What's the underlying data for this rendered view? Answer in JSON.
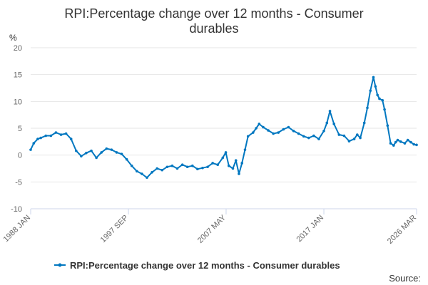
{
  "chart_data": {
    "type": "line",
    "title_lines": [
      "RPI:Percentage change over 12 months - Consumer",
      "durables"
    ],
    "ylabel": "%",
    "ylim": [
      -10,
      20
    ],
    "yticks": [
      "20",
      "15",
      "10",
      "5",
      "0",
      "-5",
      "-10"
    ],
    "xlim": [
      1988.0,
      2026.17
    ],
    "xticks": [
      {
        "label": "1988 JAN",
        "x": 1988.0
      },
      {
        "label": "1997 SEP",
        "x": 1997.67
      },
      {
        "label": "2007 MAY",
        "x": 2007.33
      },
      {
        "label": "2017 JAN",
        "x": 2017.0
      },
      {
        "label": "2026 MAR",
        "x": 2026.17
      }
    ],
    "grid": true,
    "legend": {
      "position": "bottom",
      "label": "RPI:Percentage change over 12 months - Consumer durables"
    },
    "series": [
      {
        "name": "RPI:Percentage change over 12 months - Consumer durables",
        "color": "#0077c0",
        "x": [
          1988.0,
          1988.3,
          1988.7,
          1989.0,
          1989.5,
          1990.0,
          1990.5,
          1991.0,
          1991.5,
          1992.0,
          1992.5,
          1993.0,
          1993.5,
          1994.0,
          1994.5,
          1995.0,
          1995.5,
          1996.0,
          1996.5,
          1997.0,
          1997.5,
          1998.0,
          1998.5,
          1999.0,
          1999.5,
          2000.0,
          2000.5,
          2001.0,
          2001.5,
          2002.0,
          2002.5,
          2003.0,
          2003.5,
          2004.0,
          2004.5,
          2005.0,
          2005.5,
          2006.0,
          2006.5,
          2007.0,
          2007.3,
          2007.6,
          2008.0,
          2008.3,
          2008.6,
          2008.9,
          2009.2,
          2009.5,
          2010.0,
          2010.3,
          2010.6,
          2011.0,
          2011.5,
          2012.0,
          2012.5,
          2013.0,
          2013.5,
          2014.0,
          2014.5,
          2015.0,
          2015.5,
          2016.0,
          2016.5,
          2017.0,
          2017.3,
          2017.6,
          2018.0,
          2018.5,
          2019.0,
          2019.5,
          2020.0,
          2020.3,
          2020.6,
          2021.0,
          2021.3,
          2021.6,
          2021.9,
          2022.1,
          2022.3,
          2022.5,
          2022.8,
          2023.0,
          2023.3,
          2023.6,
          2023.9,
          2024.1,
          2024.3,
          2024.6,
          2025.0,
          2025.3,
          2025.6,
          2025.9,
          2026.17
        ],
        "values": [
          1.0,
          2.2,
          3.0,
          3.2,
          3.6,
          3.6,
          4.2,
          3.8,
          4.0,
          3.0,
          0.8,
          -0.2,
          0.4,
          0.8,
          -0.5,
          0.5,
          1.2,
          1.0,
          0.5,
          0.2,
          -0.8,
          -2.0,
          -3.0,
          -3.5,
          -4.2,
          -3.2,
          -2.5,
          -2.8,
          -2.2,
          -2.0,
          -2.5,
          -1.8,
          -2.2,
          -2.0,
          -2.6,
          -2.4,
          -2.2,
          -1.5,
          -1.8,
          -0.5,
          0.5,
          -2.0,
          -2.5,
          -1.0,
          -3.5,
          -1.5,
          1.0,
          3.5,
          4.2,
          5.0,
          5.8,
          5.2,
          4.6,
          4.0,
          4.2,
          4.8,
          5.2,
          4.5,
          4.0,
          3.5,
          3.2,
          3.6,
          3.0,
          4.5,
          6.0,
          8.2,
          5.8,
          3.8,
          3.6,
          2.6,
          3.0,
          3.8,
          3.2,
          6.0,
          8.8,
          12.0,
          14.5,
          12.8,
          11.2,
          10.5,
          10.2,
          8.5,
          5.5,
          2.2,
          1.8,
          2.4,
          2.8,
          2.5,
          2.2,
          2.8,
          2.4,
          2.0,
          1.9
        ]
      }
    ],
    "source_label": "Source:"
  }
}
